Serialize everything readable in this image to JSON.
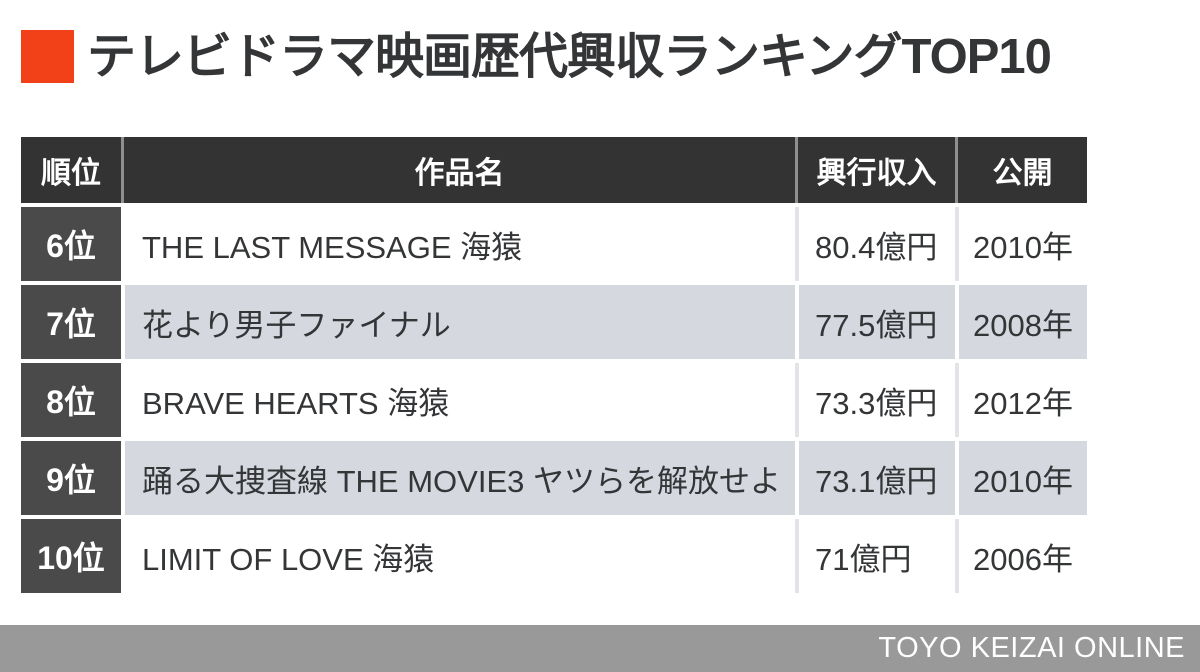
{
  "page": {
    "title": "テレビドラマ映画歴代興収ランキングTOP10",
    "footer": "TOYO KEIZAI ONLINE"
  },
  "colors": {
    "accent_orange": "#f24118",
    "header_bg": "#333333",
    "rank_cell_bg": "#4a4a4a",
    "row_alt_bg": "#d5d8df",
    "row_bg": "#ffffff",
    "text_dark": "#333537",
    "footer_bg": "#999999"
  },
  "table": {
    "headers": {
      "rank": "順位",
      "title": "作品名",
      "revenue": "興行収入",
      "release": "公開"
    },
    "rows": [
      {
        "rank": "6位",
        "title": "THE LAST MESSAGE 海猿",
        "revenue": "80.4億円",
        "release": "2010年"
      },
      {
        "rank": "7位",
        "title": "花より男子ファイナル",
        "revenue": "77.5億円",
        "release": "2008年"
      },
      {
        "rank": "8位",
        "title": "BRAVE HEARTS 海猿",
        "revenue": "73.3億円",
        "release": "2012年"
      },
      {
        "rank": "9位",
        "title": "踊る大捜査線 THE MOVIE3 ヤツらを解放せよ",
        "revenue": "73.1億円",
        "release": "2010年"
      },
      {
        "rank": "10位",
        "title": "LIMIT OF LOVE 海猿",
        "revenue": "71億円",
        "release": "2006年"
      }
    ]
  },
  "chart_data": {
    "type": "table",
    "title": "テレビドラマ映画歴代興収ランキングTOP10",
    "columns": [
      "順位",
      "作品名",
      "興行収入",
      "公開"
    ],
    "rows": [
      [
        "6位",
        "THE LAST MESSAGE 海猿",
        "80.4億円",
        "2010年"
      ],
      [
        "7位",
        "花より男子ファイナル",
        "77.5億円",
        "2008年"
      ],
      [
        "8位",
        "BRAVE HEARTS 海猿",
        "73.3億円",
        "2012年"
      ],
      [
        "9位",
        "踊る大捜査線 THE MOVIE3 ヤツらを解放せよ",
        "73.1億円",
        "2010年"
      ],
      [
        "10位",
        "LIMIT OF LOVE 海猿",
        "71億円",
        "2006年"
      ]
    ],
    "revenue_values_oku_yen": [
      80.4,
      77.5,
      73.3,
      73.1,
      71
    ],
    "release_years": [
      2010,
      2008,
      2012,
      2010,
      2006
    ],
    "notes": "Ranking infographic showing ranks 6-10 of all-time TV-drama movie box office"
  }
}
